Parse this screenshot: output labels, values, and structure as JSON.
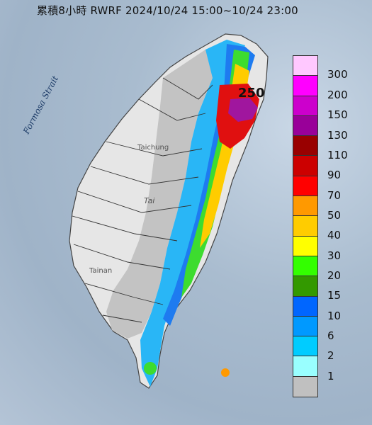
{
  "title": "累積8小時 RWRF 2024/10/24 15:00~10/24 23:00",
  "labels": {
    "sea_label": "Formosa Strait",
    "city_taichung": "Taichung",
    "mountain_label": "Tai",
    "city_tainan": "Tainan",
    "peak_value": "250"
  },
  "legend": [
    {
      "value": "300",
      "color": "#ffc8ff"
    },
    {
      "value": "200",
      "color": "#ff00ff"
    },
    {
      "value": "150",
      "color": "#cc00cc"
    },
    {
      "value": "130",
      "color": "#990099"
    },
    {
      "value": "110",
      "color": "#990000"
    },
    {
      "value": "90",
      "color": "#cc0000"
    },
    {
      "value": "70",
      "color": "#ff0000"
    },
    {
      "value": "50",
      "color": "#ff9900"
    },
    {
      "value": "40",
      "color": "#ffcc00"
    },
    {
      "value": "30",
      "color": "#ffff00"
    },
    {
      "value": "20",
      "color": "#33ff00"
    },
    {
      "value": "15",
      "color": "#339900"
    },
    {
      "value": "10",
      "color": "#0066ff"
    },
    {
      "value": "6",
      "color": "#0099ff"
    },
    {
      "value": "2",
      "color": "#00ccff"
    },
    {
      "value": "1",
      "color": "#99ffff"
    },
    {
      "value": "",
      "color": "#c0c0c0"
    }
  ]
}
